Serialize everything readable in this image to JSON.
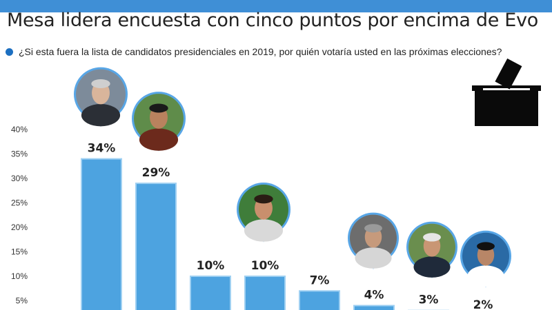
{
  "header": {
    "title": "Mesa lidera encuesta con cinco puntos por encima de Evo",
    "question": "¿Si esta fuera la lista de candidatos presidenciales en 2019, por quién votaría usted en las próximas elecciones?"
  },
  "colors": {
    "bar": "#4da3e0",
    "accent": "#3f8fd6",
    "circle_ring": "#58a6e6"
  },
  "icons": {
    "ballot": "ballot-box-icon"
  },
  "chart_data": {
    "type": "bar",
    "title": "Mesa lidera encuesta con cinco puntos por encima de Evo",
    "xlabel": "",
    "ylabel": "",
    "ylim": [
      0,
      40
    ],
    "yticks": [
      "5%",
      "10%",
      "15%",
      "20%",
      "25%",
      "30%",
      "35%",
      "40%"
    ],
    "values": [
      34,
      29,
      10,
      10,
      7,
      4,
      3,
      2
    ],
    "labels": [
      "34%",
      "29%",
      "10%",
      "10%",
      "7%",
      "4%",
      "3%",
      "2%"
    ],
    "grid": false
  }
}
